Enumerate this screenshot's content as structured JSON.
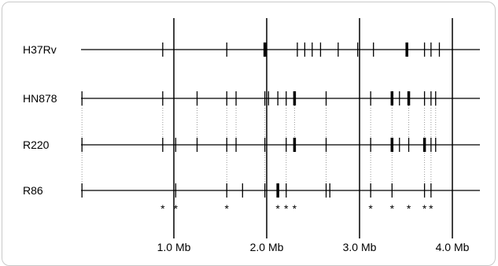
{
  "strains": [
    {
      "name": "H37Rv",
      "ticks": [
        {
          "pos": 0.88
        },
        {
          "pos": 1.57
        },
        {
          "pos": 1.98,
          "thick": true
        },
        {
          "pos": 2.33
        },
        {
          "pos": 2.41
        },
        {
          "pos": 2.49
        },
        {
          "pos": 2.58
        },
        {
          "pos": 2.77
        },
        {
          "pos": 2.98
        },
        {
          "pos": 3.15
        },
        {
          "pos": 3.51,
          "thick": true
        },
        {
          "pos": 3.7
        },
        {
          "pos": 3.77
        },
        {
          "pos": 3.86
        }
      ]
    },
    {
      "name": "HN878",
      "ticks": [
        {
          "pos": 0.01
        },
        {
          "pos": 0.88
        },
        {
          "pos": 1.25
        },
        {
          "pos": 1.57
        },
        {
          "pos": 1.67
        },
        {
          "pos": 1.98
        },
        {
          "pos": 2.02
        },
        {
          "pos": 2.12
        },
        {
          "pos": 2.21
        },
        {
          "pos": 2.3,
          "thick": true
        },
        {
          "pos": 2.64
        },
        {
          "pos": 3.12
        },
        {
          "pos": 3.35,
          "thick": true
        },
        {
          "pos": 3.43
        },
        {
          "pos": 3.53,
          "thick": true
        },
        {
          "pos": 3.7
        },
        {
          "pos": 3.77
        },
        {
          "pos": 3.82
        }
      ]
    },
    {
      "name": "R220",
      "ticks": [
        {
          "pos": 0.01
        },
        {
          "pos": 0.88
        },
        {
          "pos": 1.02
        },
        {
          "pos": 1.25
        },
        {
          "pos": 1.57
        },
        {
          "pos": 1.67
        },
        {
          "pos": 1.98
        },
        {
          "pos": 2.21
        },
        {
          "pos": 2.3,
          "thick": true
        },
        {
          "pos": 2.64
        },
        {
          "pos": 3.12
        },
        {
          "pos": 3.35,
          "thick": true
        },
        {
          "pos": 3.43
        },
        {
          "pos": 3.53
        },
        {
          "pos": 3.7,
          "thick": true
        },
        {
          "pos": 3.77
        },
        {
          "pos": 3.82
        }
      ]
    },
    {
      "name": "R86",
      "ticks": [
        {
          "pos": 0.01
        },
        {
          "pos": 1.02
        },
        {
          "pos": 1.57
        },
        {
          "pos": 1.74
        },
        {
          "pos": 1.98
        },
        {
          "pos": 2.12,
          "thick": true
        },
        {
          "pos": 2.21
        },
        {
          "pos": 2.64
        },
        {
          "pos": 2.68
        },
        {
          "pos": 3.12
        },
        {
          "pos": 3.35
        },
        {
          "pos": 3.7
        },
        {
          "pos": 3.77
        }
      ]
    }
  ],
  "dotted_links": [
    {
      "pos": 0.01,
      "from": 1,
      "to": 3
    },
    {
      "pos": 0.88,
      "from": 1,
      "to": 2
    },
    {
      "pos": 1.25,
      "from": 1,
      "to": 2
    },
    {
      "pos": 1.57,
      "from": 1,
      "to": 3
    },
    {
      "pos": 1.67,
      "from": 1,
      "to": 2
    },
    {
      "pos": 1.98,
      "from": 1,
      "to": 3
    },
    {
      "pos": 2.21,
      "from": 1,
      "to": 3
    },
    {
      "pos": 2.3,
      "from": 1,
      "to": 2
    },
    {
      "pos": 2.64,
      "from": 1,
      "to": 3
    },
    {
      "pos": 3.12,
      "from": 1,
      "to": 3
    },
    {
      "pos": 3.35,
      "from": 1,
      "to": 3
    },
    {
      "pos": 3.53,
      "from": 1,
      "to": 2
    },
    {
      "pos": 3.7,
      "from": 1,
      "to": 3
    },
    {
      "pos": 3.77,
      "from": 1,
      "to": 3
    },
    {
      "pos": 3.82,
      "from": 1,
      "to": 2
    }
  ],
  "asterisks": [
    0.88,
    1.02,
    1.57,
    2.12,
    2.21,
    2.3,
    3.12,
    3.35,
    3.53,
    3.7,
    3.77
  ],
  "asterisk_char": "*",
  "scale": {
    "min": 0.0,
    "max": 4.5,
    "gridlines": [
      1.0,
      2.0,
      3.0,
      4.0
    ],
    "labels": [
      "1.0 Mb",
      "2.0 Mb",
      "3.0 Mb",
      "4.0 Mb"
    ]
  },
  "colors": {
    "line": "#000000",
    "dotted": "#999999",
    "panel_border": "#c9c9c9"
  }
}
